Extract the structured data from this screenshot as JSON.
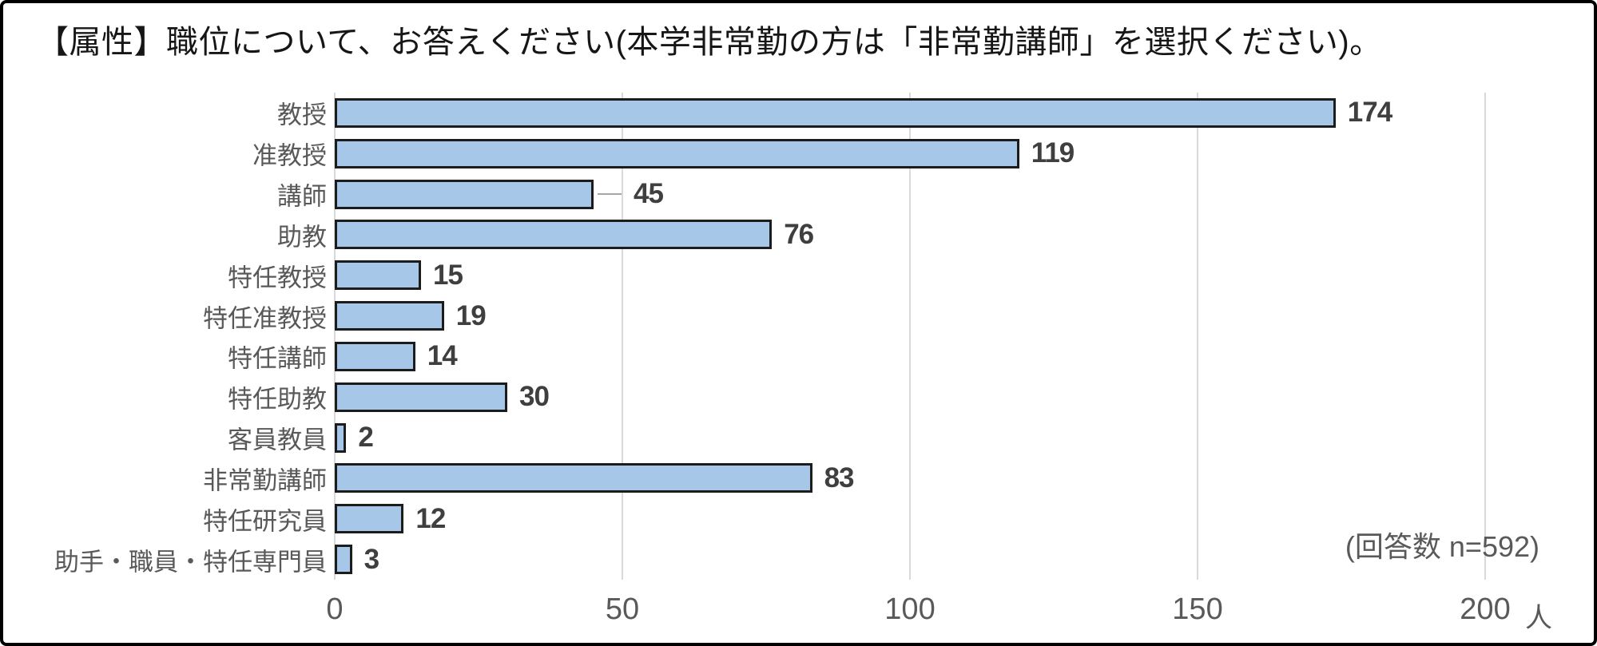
{
  "title": "【属性】職位について、お答えください(本学非常勤の方は「非常勤講師」を選択ください)。",
  "annotation": "(回答数 n=592)",
  "chart_data": {
    "type": "bar",
    "orientation": "horizontal",
    "title": "【属性】職位について、お答えください(本学非常勤の方は「非常勤講師」を選択ください)。",
    "categories": [
      "教授",
      "准教授",
      "講師",
      "助教",
      "特任教授",
      "特任准教授",
      "特任講師",
      "特任助教",
      "客員教員",
      "非常勤講師",
      "特任研究員",
      "助手・職員・特任専門員"
    ],
    "values": [
      174,
      119,
      45,
      76,
      15,
      19,
      14,
      30,
      2,
      83,
      12,
      3
    ],
    "leader_line_category": "講師",
    "n_total": 592,
    "xticks": [
      0,
      50,
      100,
      150,
      200
    ],
    "xlim": [
      0,
      200
    ],
    "xlabel_unit": "人",
    "grid": true,
    "legend": "none",
    "colors": {
      "bar_fill": "#a6c7e8",
      "bar_border": "#1c1c1c",
      "gridline": "#d9d9d9",
      "category_label": "#595959",
      "value_label": "#3f3f3f",
      "tick_label": "#595959",
      "title_text": "#161616",
      "frame_border": "#000000"
    }
  }
}
